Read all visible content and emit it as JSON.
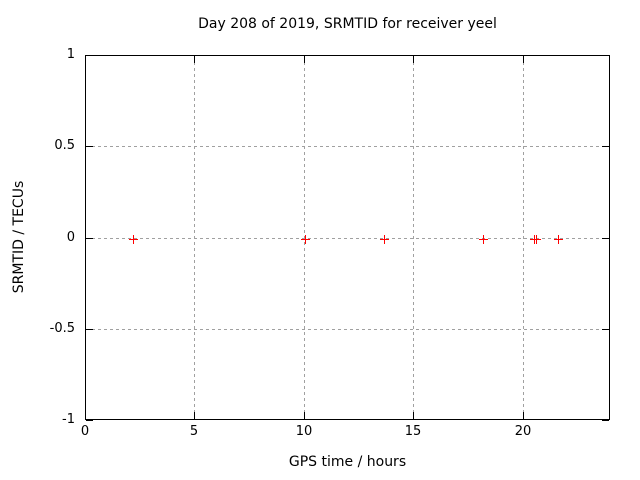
{
  "window": {
    "background": "#ffffff"
  },
  "colors": {
    "foreground": "#000000",
    "grid": "#a0a0a0",
    "marker": "#ff0000",
    "background": "#ffffff"
  },
  "chart_data": {
    "type": "scatter",
    "title": "Day 208 of 2019, SRMTID for receiver yeel",
    "xlabel": "GPS time / hours",
    "ylabel": "SRMTID / TECUs",
    "xlim": [
      0,
      24
    ],
    "ylim": [
      -1,
      1
    ],
    "xtick_values": [
      0,
      5,
      10,
      15,
      20
    ],
    "xtick_labels": [
      "0",
      "5",
      "10",
      "15",
      "20"
    ],
    "ytick_values": [
      1,
      0.5,
      0,
      -0.5,
      -1
    ],
    "ytick_labels": [
      "1",
      "0.5",
      "0",
      "-0.5",
      "-1"
    ],
    "grid": true,
    "legend": "none",
    "marker": {
      "shape": "plus",
      "color": "#ff0000",
      "size": 9
    },
    "series": [
      {
        "name": "SRMTID",
        "x": [
          2.15,
          10.0,
          13.64,
          18.16,
          20.49,
          20.56,
          21.57
        ],
        "y": [
          0,
          0,
          0,
          0,
          0,
          0,
          0
        ]
      }
    ]
  }
}
